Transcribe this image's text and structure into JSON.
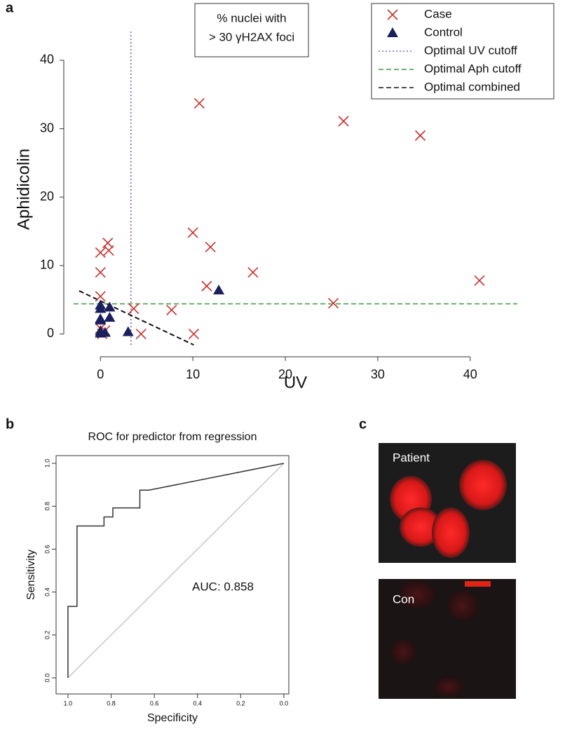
{
  "chart_data": [
    {
      "type": "scatter",
      "panel_label": "a",
      "xlabel": "UV",
      "ylabel": "Aphidicolin",
      "annotation": [
        "% nuclei with",
        "> 30 γH2AX foci"
      ],
      "xlim": [
        -2.9,
        45.1
      ],
      "ylim": [
        -1.9,
        44.2
      ],
      "xticks": [
        0,
        10,
        20,
        30,
        40
      ],
      "yticks": [
        0,
        10,
        20,
        30,
        40
      ],
      "legend": "top-right",
      "series": [
        {
          "name": "Case",
          "kind": "points",
          "marker": "x",
          "color": "#c8312e",
          "x": [
            10.7,
            26.3,
            34.6,
            10,
            11.9,
            0.8,
            0.9,
            0,
            0,
            16.5,
            41,
            11.5,
            0,
            25.2,
            3.6,
            7.7,
            0,
            0.2,
            4.4,
            10.1,
            0.5
          ],
          "y": [
            33.7,
            31.1,
            29,
            14.8,
            12.7,
            13.3,
            12.2,
            11.9,
            9,
            9,
            7.8,
            7,
            5.5,
            4.5,
            3.7,
            3.5,
            0.8,
            0,
            0,
            0,
            0.5
          ]
        },
        {
          "name": "Control",
          "kind": "points",
          "marker": "triangle",
          "color": "#1a1f5e",
          "x": [
            12.8,
            0,
            0,
            1,
            0,
            1,
            0,
            0,
            0.5,
            3,
            0
          ],
          "y": [
            6.4,
            4.2,
            3.7,
            3.9,
            2.2,
            2.4,
            2,
            0.4,
            0.2,
            0.3,
            0.1
          ]
        },
        {
          "name": "Optimal UV cutoff",
          "kind": "vline",
          "style": "dotted",
          "color": "#8a5cb5",
          "value": 3.3
        },
        {
          "name": "Optimal Aph cutoff",
          "kind": "hline",
          "style": "dashed",
          "color": "#3a9a3a",
          "value": 4.4
        },
        {
          "name": "Optimal combined",
          "kind": "line",
          "style": "dashed",
          "color": "#111111",
          "x": [
            -2.3,
            10.1
          ],
          "y": [
            6.3,
            -1.6
          ]
        }
      ]
    },
    {
      "type": "line",
      "panel_label": "b",
      "title": "ROC for predictor from regression",
      "xlabel": "Specificity",
      "ylabel": "Sensitivity",
      "annotation": [
        "AUC: 0.858"
      ],
      "xlim": [
        1.055,
        -0.023
      ],
      "ylim": [
        -0.075,
        1.036
      ],
      "xticks": [
        {
          "value": 1,
          "label": "1.0"
        },
        {
          "value": 0.8,
          "label": "0.8"
        },
        {
          "value": 0.6,
          "label": "0.6"
        },
        {
          "value": 0.4,
          "label": "0.4"
        },
        {
          "value": 0.2,
          "label": "0.2"
        },
        {
          "value": 0,
          "label": "0.0"
        }
      ],
      "yticks": [
        {
          "value": 0,
          "label": "0.0"
        },
        {
          "value": 0.2,
          "label": "0.2"
        },
        {
          "value": 0.4,
          "label": "0.4"
        },
        {
          "value": 0.6,
          "label": "0.6"
        },
        {
          "value": 0.8,
          "label": "0.8"
        },
        {
          "value": 1,
          "label": "1.0"
        }
      ],
      "series": [
        {
          "kind": "line",
          "style": "solid",
          "color": "#c8c8c8",
          "x": [
            1,
            0
          ],
          "y": [
            0,
            1
          ]
        },
        {
          "kind": "line",
          "style": "solid",
          "color": "#333333",
          "x": [
            1,
            1,
            0.958,
            0.958,
            0.833,
            0.833,
            0.792,
            0.792,
            0.667,
            0.667,
            0.625,
            0
          ],
          "y": [
            0,
            0.333,
            0.333,
            0.708,
            0.708,
            0.75,
            0.75,
            0.792,
            0.792,
            0.875,
            0.875,
            1
          ]
        }
      ]
    }
  ],
  "images": {
    "panel_label": "c",
    "labels": [
      "Patient",
      "Con"
    ]
  }
}
